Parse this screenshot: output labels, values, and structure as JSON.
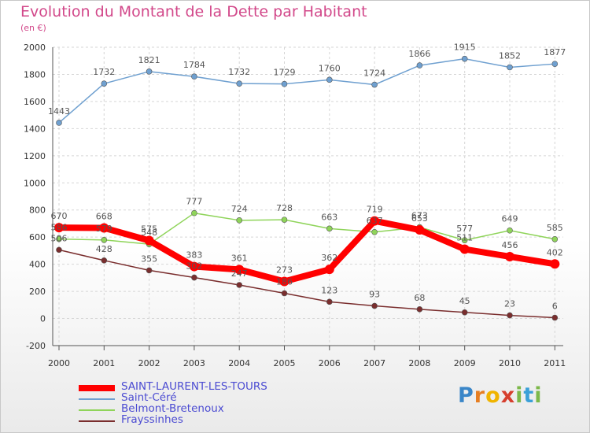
{
  "chart_data": {
    "type": "line",
    "title": "Evolution du Montant de la Dette par Habitant",
    "subtitle": "(en €)",
    "xlabel": "",
    "ylabel": "",
    "ylim": [
      -200,
      2000
    ],
    "yticks": [
      -200,
      0,
      200,
      400,
      600,
      800,
      1000,
      1200,
      1400,
      1600,
      1800,
      2000
    ],
    "x": [
      "2000",
      "2001",
      "2002",
      "2003",
      "2004",
      "2005",
      "2006",
      "2007",
      "2008",
      "2009",
      "2010",
      "2011"
    ],
    "grid": true,
    "legend_position": "bottom-left",
    "series": [
      {
        "name": "SAINT-LAURENT-LES-TOURS",
        "color": "#ff0000",
        "values": [
          670,
          668,
          575,
          383,
          361,
          273,
          362,
          719,
          653,
          511,
          456,
          402
        ]
      },
      {
        "name": "Saint-Céré",
        "color": "#6fa0d0",
        "values": [
          1443,
          1732,
          1821,
          1784,
          1732,
          1729,
          1760,
          1724,
          1866,
          1915,
          1852,
          1877
        ]
      },
      {
        "name": "Belmont-Bretenoux",
        "color": "#8fd45a",
        "values": [
          586,
          579,
          548,
          777,
          724,
          728,
          663,
          637,
          673,
          577,
          649,
          585
        ]
      },
      {
        "name": "Frayssinhes",
        "color": "#7a2e2e",
        "values": [
          506,
          428,
          355,
          302,
          247,
          186,
          123,
          93,
          68,
          45,
          23,
          6
        ]
      }
    ]
  },
  "logo_text": "Proxiti"
}
